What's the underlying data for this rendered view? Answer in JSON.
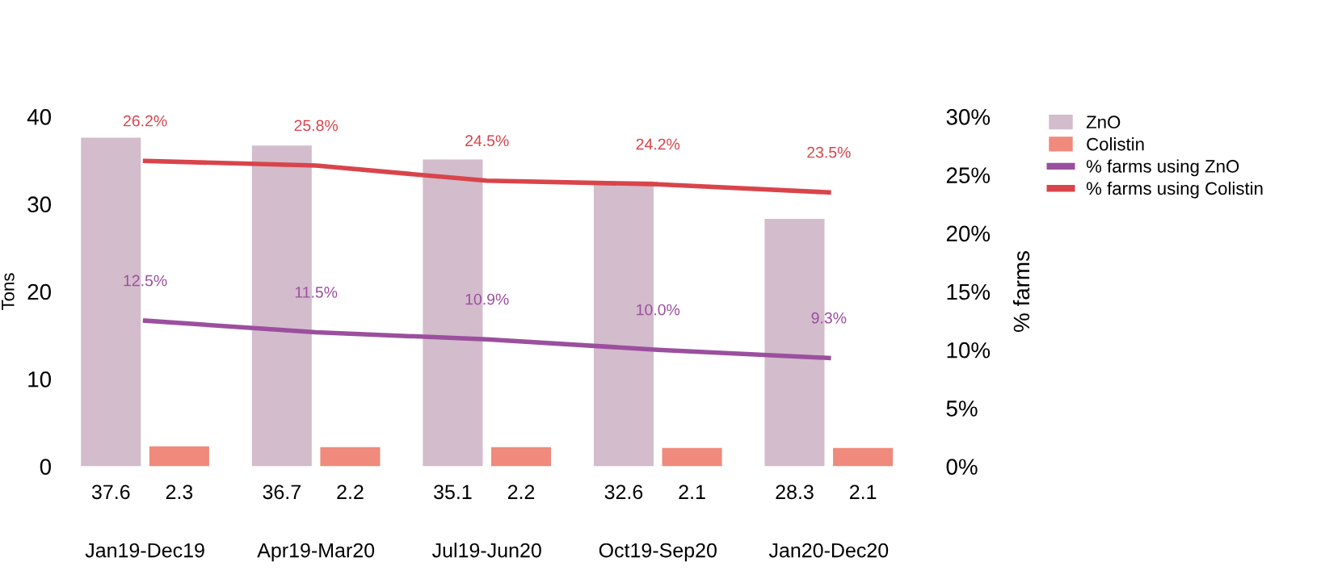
{
  "chart_data": {
    "type": "bar",
    "categories": [
      "Jan19-Dec19",
      "Apr19-Mar20",
      "Jul19-Jun20",
      "Oct19-Sep20",
      "Jan20-Dec20"
    ],
    "series": [
      {
        "name": "ZnO",
        "color": "#d3bccc",
        "values": [
          37.6,
          36.7,
          35.1,
          32.6,
          28.3
        ],
        "value_labels": [
          "37.6",
          "36.7",
          "35.1",
          "32.6",
          "28.3"
        ]
      },
      {
        "name": "Colistin",
        "color": "#ef8a7c",
        "values": [
          2.3,
          2.2,
          2.2,
          2.1,
          2.1
        ],
        "value_labels": [
          "2.3",
          "2.2",
          "2.2",
          "2.1",
          "2.1"
        ]
      },
      {
        "name": "% farms using ZnO",
        "type": "line",
        "axis": "y2",
        "color": "#9b4f9e",
        "values": [
          12.5,
          11.5,
          10.9,
          10.0,
          9.3
        ],
        "value_labels": [
          "12.5%",
          "11.5%",
          "10.9%",
          "10.0%",
          "9.3%"
        ]
      },
      {
        "name": "% farms using Colistin",
        "type": "line",
        "axis": "y2",
        "color": "#d9444b",
        "values": [
          26.2,
          25.8,
          24.5,
          24.2,
          23.5
        ],
        "value_labels": [
          "26.2%",
          "25.8%",
          "24.5%",
          "24.2%",
          "23.5%"
        ]
      }
    ],
    "ylabel": "Tons",
    "y2label": "% farms",
    "ylim": [
      0,
      40
    ],
    "yticks": [
      0,
      10,
      20,
      30,
      40
    ],
    "y2lim": [
      0,
      30
    ],
    "y2ticks": [
      {
        "value": 0,
        "label": "0%"
      },
      {
        "value": 5,
        "label": "5%"
      },
      {
        "value": 10,
        "label": "10%"
      },
      {
        "value": 15,
        "label": "15%"
      },
      {
        "value": 20,
        "label": "20%"
      },
      {
        "value": 25,
        "label": "25%"
      },
      {
        "value": 30,
        "label": "30%"
      }
    ],
    "legend": "top right",
    "grid": false
  }
}
